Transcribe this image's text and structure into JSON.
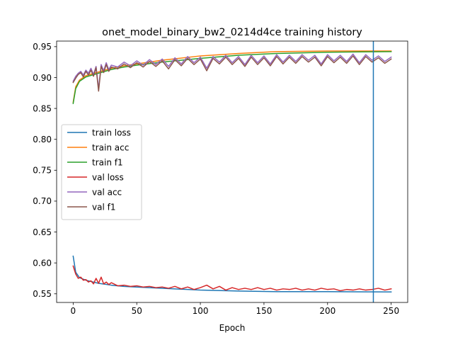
{
  "chart_data": {
    "type": "line",
    "title": "onet_model_binary_bw2_0214d4ce training history",
    "xlabel": "Epoch",
    "ylabel": "",
    "xlim": [
      -13,
      263
    ],
    "ylim": [
      0.536,
      0.959
    ],
    "xticks": [
      0,
      50,
      100,
      150,
      200,
      250
    ],
    "yticks": [
      0.55,
      0.6,
      0.65,
      0.7,
      0.75,
      0.8,
      0.85,
      0.9,
      0.95
    ],
    "ytick_labels": [
      "0.55",
      "0.60",
      "0.65",
      "0.70",
      "0.75",
      "0.80",
      "0.85",
      "0.90",
      "0.95"
    ],
    "grid": false,
    "legend_position": "center-left",
    "vline": {
      "x": 236,
      "color": "#1f77b4"
    },
    "series": [
      {
        "name": "train loss",
        "color": "#1f77b4",
        "points": [
          [
            0,
            0.611
          ],
          [
            2,
            0.585
          ],
          [
            5,
            0.576
          ],
          [
            10,
            0.572
          ],
          [
            20,
            0.567
          ],
          [
            30,
            0.564
          ],
          [
            40,
            0.562
          ],
          [
            50,
            0.561
          ],
          [
            70,
            0.559
          ],
          [
            100,
            0.556
          ],
          [
            130,
            0.5545
          ],
          [
            160,
            0.5535
          ],
          [
            200,
            0.5535
          ],
          [
            250,
            0.553
          ]
        ]
      },
      {
        "name": "train acc",
        "color": "#ff7f0e",
        "points": [
          [
            0,
            0.86
          ],
          [
            2,
            0.885
          ],
          [
            5,
            0.896
          ],
          [
            10,
            0.903
          ],
          [
            20,
            0.909
          ],
          [
            30,
            0.915
          ],
          [
            40,
            0.919
          ],
          [
            50,
            0.922
          ],
          [
            70,
            0.928
          ],
          [
            100,
            0.935
          ],
          [
            130,
            0.939
          ],
          [
            160,
            0.942
          ],
          [
            200,
            0.943
          ],
          [
            250,
            0.943
          ]
        ]
      },
      {
        "name": "train f1",
        "color": "#2ca02c",
        "points": [
          [
            0,
            0.858
          ],
          [
            2,
            0.882
          ],
          [
            5,
            0.894
          ],
          [
            10,
            0.901
          ],
          [
            20,
            0.907
          ],
          [
            30,
            0.913
          ],
          [
            40,
            0.917
          ],
          [
            50,
            0.92
          ],
          [
            70,
            0.925
          ],
          [
            100,
            0.931
          ],
          [
            130,
            0.936
          ],
          [
            160,
            0.939
          ],
          [
            200,
            0.941
          ],
          [
            250,
            0.942
          ]
        ]
      },
      {
        "name": "val loss",
        "color": "#d62728",
        "points": [
          [
            0,
            0.595
          ],
          [
            2,
            0.582
          ],
          [
            4,
            0.575
          ],
          [
            6,
            0.577
          ],
          [
            8,
            0.572
          ],
          [
            10,
            0.573
          ],
          [
            12,
            0.569
          ],
          [
            14,
            0.571
          ],
          [
            16,
            0.566
          ],
          [
            18,
            0.575
          ],
          [
            20,
            0.567
          ],
          [
            22,
            0.577
          ],
          [
            24,
            0.566
          ],
          [
            26,
            0.569
          ],
          [
            28,
            0.565
          ],
          [
            30,
            0.568
          ],
          [
            35,
            0.563
          ],
          [
            40,
            0.564
          ],
          [
            45,
            0.562
          ],
          [
            50,
            0.563
          ],
          [
            55,
            0.561
          ],
          [
            60,
            0.562
          ],
          [
            65,
            0.56
          ],
          [
            70,
            0.561
          ],
          [
            75,
            0.559
          ],
          [
            80,
            0.562
          ],
          [
            85,
            0.558
          ],
          [
            90,
            0.561
          ],
          [
            95,
            0.557
          ],
          [
            100,
            0.56
          ],
          [
            105,
            0.564
          ],
          [
            110,
            0.558
          ],
          [
            115,
            0.562
          ],
          [
            120,
            0.556
          ],
          [
            125,
            0.56
          ],
          [
            130,
            0.557
          ],
          [
            135,
            0.559
          ],
          [
            140,
            0.557
          ],
          [
            145,
            0.56
          ],
          [
            150,
            0.557
          ],
          [
            155,
            0.559
          ],
          [
            160,
            0.556
          ],
          [
            165,
            0.558
          ],
          [
            170,
            0.557
          ],
          [
            175,
            0.559
          ],
          [
            180,
            0.556
          ],
          [
            185,
            0.558
          ],
          [
            190,
            0.556
          ],
          [
            195,
            0.559
          ],
          [
            200,
            0.557
          ],
          [
            205,
            0.558
          ],
          [
            210,
            0.555
          ],
          [
            215,
            0.557
          ],
          [
            220,
            0.556
          ],
          [
            225,
            0.558
          ],
          [
            230,
            0.556
          ],
          [
            235,
            0.557
          ],
          [
            240,
            0.559
          ],
          [
            245,
            0.556
          ],
          [
            250,
            0.558
          ]
        ]
      },
      {
        "name": "val acc",
        "color": "#9467bd",
        "points": [
          [
            0,
            0.894
          ],
          [
            2,
            0.902
          ],
          [
            4,
            0.907
          ],
          [
            6,
            0.91
          ],
          [
            8,
            0.904
          ],
          [
            10,
            0.912
          ],
          [
            12,
            0.907
          ],
          [
            14,
            0.915
          ],
          [
            16,
            0.905
          ],
          [
            18,
            0.918
          ],
          [
            20,
            0.882
          ],
          [
            22,
            0.921
          ],
          [
            24,
            0.911
          ],
          [
            26,
            0.924
          ],
          [
            28,
            0.913
          ],
          [
            30,
            0.92
          ],
          [
            35,
            0.917
          ],
          [
            40,
            0.925
          ],
          [
            45,
            0.919
          ],
          [
            50,
            0.927
          ],
          [
            55,
            0.92
          ],
          [
            60,
            0.929
          ],
          [
            65,
            0.921
          ],
          [
            70,
            0.93
          ],
          [
            75,
            0.918
          ],
          [
            80,
            0.932
          ],
          [
            85,
            0.922
          ],
          [
            90,
            0.934
          ],
          [
            95,
            0.924
          ],
          [
            100,
            0.933
          ],
          [
            105,
            0.915
          ],
          [
            110,
            0.934
          ],
          [
            115,
            0.925
          ],
          [
            120,
            0.936
          ],
          [
            125,
            0.924
          ],
          [
            130,
            0.934
          ],
          [
            135,
            0.921
          ],
          [
            140,
            0.936
          ],
          [
            145,
            0.924
          ],
          [
            150,
            0.935
          ],
          [
            155,
            0.922
          ],
          [
            160,
            0.937
          ],
          [
            165,
            0.925
          ],
          [
            170,
            0.936
          ],
          [
            175,
            0.926
          ],
          [
            180,
            0.937
          ],
          [
            185,
            0.928
          ],
          [
            190,
            0.936
          ],
          [
            195,
            0.922
          ],
          [
            200,
            0.937
          ],
          [
            205,
            0.927
          ],
          [
            210,
            0.936
          ],
          [
            215,
            0.926
          ],
          [
            220,
            0.938
          ],
          [
            225,
            0.924
          ],
          [
            230,
            0.937
          ],
          [
            235,
            0.928
          ],
          [
            240,
            0.935
          ],
          [
            245,
            0.926
          ],
          [
            250,
            0.933
          ]
        ]
      },
      {
        "name": "val f1",
        "color": "#8c564b",
        "points": [
          [
            0,
            0.892
          ],
          [
            2,
            0.899
          ],
          [
            4,
            0.905
          ],
          [
            6,
            0.908
          ],
          [
            8,
            0.901
          ],
          [
            10,
            0.91
          ],
          [
            12,
            0.904
          ],
          [
            14,
            0.912
          ],
          [
            16,
            0.902
          ],
          [
            18,
            0.916
          ],
          [
            20,
            0.878
          ],
          [
            22,
            0.918
          ],
          [
            24,
            0.908
          ],
          [
            26,
            0.921
          ],
          [
            28,
            0.91
          ],
          [
            30,
            0.917
          ],
          [
            35,
            0.914
          ],
          [
            40,
            0.922
          ],
          [
            45,
            0.916
          ],
          [
            50,
            0.924
          ],
          [
            55,
            0.917
          ],
          [
            60,
            0.926
          ],
          [
            65,
            0.918
          ],
          [
            70,
            0.927
          ],
          [
            75,
            0.914
          ],
          [
            80,
            0.929
          ],
          [
            85,
            0.919
          ],
          [
            90,
            0.931
          ],
          [
            95,
            0.921
          ],
          [
            100,
            0.93
          ],
          [
            105,
            0.911
          ],
          [
            110,
            0.931
          ],
          [
            115,
            0.922
          ],
          [
            120,
            0.933
          ],
          [
            125,
            0.921
          ],
          [
            130,
            0.931
          ],
          [
            135,
            0.918
          ],
          [
            140,
            0.933
          ],
          [
            145,
            0.921
          ],
          [
            150,
            0.932
          ],
          [
            155,
            0.919
          ],
          [
            160,
            0.934
          ],
          [
            165,
            0.922
          ],
          [
            170,
            0.933
          ],
          [
            175,
            0.923
          ],
          [
            180,
            0.934
          ],
          [
            185,
            0.925
          ],
          [
            190,
            0.933
          ],
          [
            195,
            0.919
          ],
          [
            200,
            0.934
          ],
          [
            205,
            0.924
          ],
          [
            210,
            0.933
          ],
          [
            215,
            0.923
          ],
          [
            220,
            0.935
          ],
          [
            225,
            0.921
          ],
          [
            230,
            0.934
          ],
          [
            235,
            0.925
          ],
          [
            240,
            0.932
          ],
          [
            245,
            0.923
          ],
          [
            250,
            0.93
          ]
        ]
      }
    ]
  }
}
